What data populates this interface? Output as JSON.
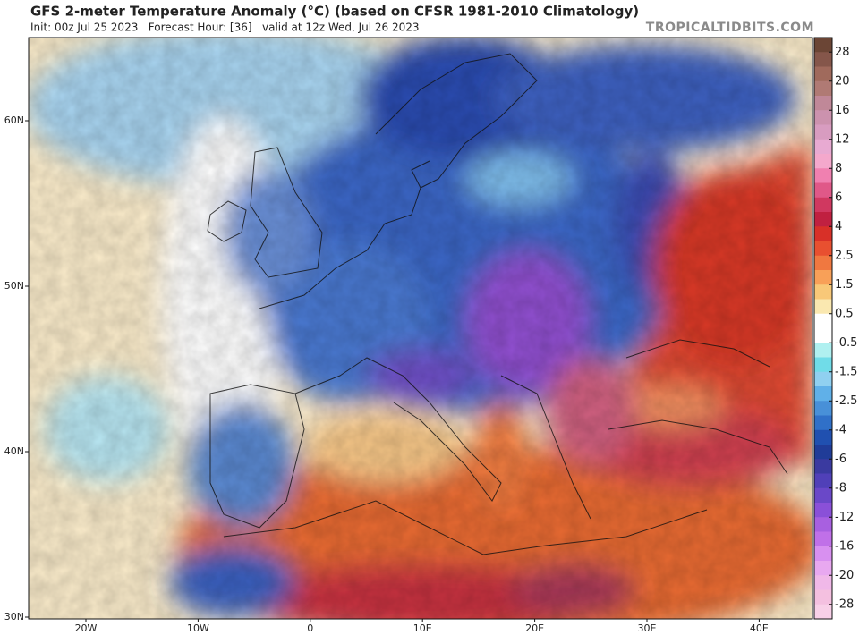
{
  "header": {
    "title": "GFS 2-meter Temperature Anomaly (°C) (based on CFSR 1981-2010 Climatology)",
    "subtitle": "Init: 00z Jul 25 2023   Forecast Hour: [36]   valid at 12z Wed, Jul 26 2023",
    "watermark": "TROPICALTIDBITS.COM"
  },
  "map": {
    "lat_labels": [
      "60N",
      "50N",
      "40N",
      "30N"
    ],
    "lon_labels": [
      "20W",
      "10W",
      "0",
      "10E",
      "20E",
      "30E",
      "40E"
    ]
  },
  "colorbar": {
    "labels": [
      "28",
      "20",
      "16",
      "12",
      "8",
      "6",
      "4",
      "2.5",
      "1.5",
      "0.5",
      "-0.5",
      "-1.5",
      "-2.5",
      "-4",
      "-6",
      "-8",
      "-12",
      "-16",
      "-20",
      "-28"
    ],
    "colors": [
      "#6b4535",
      "#85564a",
      "#a06a5c",
      "#b07a74",
      "#c08898",
      "#cc92ae",
      "#d89cc0",
      "#e8aad2",
      "#f4a8cc",
      "#f080b0",
      "#e05888",
      "#d03860",
      "#c02040",
      "#d83028",
      "#e85030",
      "#f07840",
      "#f8a058",
      "#f8c878",
      "#fae8b0",
      "#ffffff",
      "#ffffff",
      "#b0f0f0",
      "#70dce8",
      "#90d0f0",
      "#60b0e8",
      "#4890d8",
      "#3070c8",
      "#2050b0",
      "#203c98",
      "#3a3aa0",
      "#5040b8",
      "#6a48c8",
      "#8a50d8",
      "#a860e0",
      "#c070e8",
      "#d890f0",
      "#e8a8f0",
      "#f0b8e8",
      "#f4c0e0",
      "#f8d0e8"
    ]
  }
}
